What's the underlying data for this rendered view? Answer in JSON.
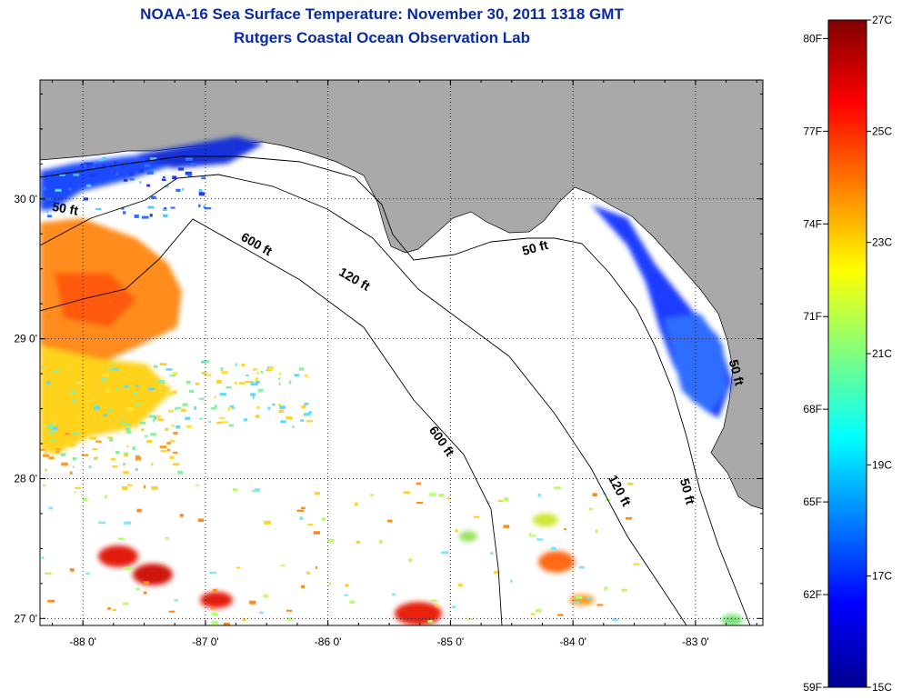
{
  "title": {
    "line1": "NOAA-16 Sea Surface Temperature:  November 30, 2011 1318 GMT",
    "line2": "Rutgers Coastal Ocean Observation Lab"
  },
  "map": {
    "lon_range": [
      -88.35,
      -82.45
    ],
    "lat_range": [
      26.95,
      30.85
    ],
    "lon_ticks": [
      -88,
      -87,
      -86,
      -85,
      -84,
      -83
    ],
    "lon_tick_labels": [
      "-88 0'",
      "-87 0'",
      "-86 0'",
      "-85 0'",
      "-84 0'",
      "-83 0'"
    ],
    "lat_ticks": [
      30,
      29,
      28,
      27
    ],
    "lat_tick_labels": [
      "30 0'",
      "29 0'",
      "28 0'",
      "27 0'"
    ],
    "grid": "dotted",
    "land_color": "#a9a9a9",
    "water_color": "#ffffff",
    "contour_labels": [
      {
        "text": "50 ft",
        "lon": -88.15,
        "lat": 29.9,
        "rot": 10
      },
      {
        "text": "600 ft",
        "lon": -86.6,
        "lat": 29.65,
        "rot": 30
      },
      {
        "text": "120 ft",
        "lon": -85.8,
        "lat": 29.4,
        "rot": 30
      },
      {
        "text": "50 ft",
        "lon": -84.3,
        "lat": 29.62,
        "rot": -15
      },
      {
        "text": "600 ft",
        "lon": -85.1,
        "lat": 28.25,
        "rot": 55
      },
      {
        "text": "120 ft",
        "lon": -83.65,
        "lat": 27.9,
        "rot": 62
      },
      {
        "text": "50 ft",
        "lon": -83.1,
        "lat": 27.9,
        "rot": 75
      },
      {
        "text": "50 ft",
        "lon": -82.7,
        "lat": 28.75,
        "rot": 75
      }
    ]
  },
  "colorbar": {
    "min_c": 15,
    "max_c": 27,
    "c_labels": [
      "27C",
      "25C",
      "23C",
      "21C",
      "19C",
      "17C",
      "15C"
    ],
    "c_values": [
      27,
      25,
      23,
      21,
      19,
      17,
      15
    ],
    "f_labels": [
      "80F",
      "77F",
      "74F",
      "71F",
      "68F",
      "65F",
      "62F",
      "59F"
    ],
    "f_values": [
      80,
      77,
      74,
      71,
      68,
      65,
      62,
      59
    ],
    "colormap": "jet"
  }
}
